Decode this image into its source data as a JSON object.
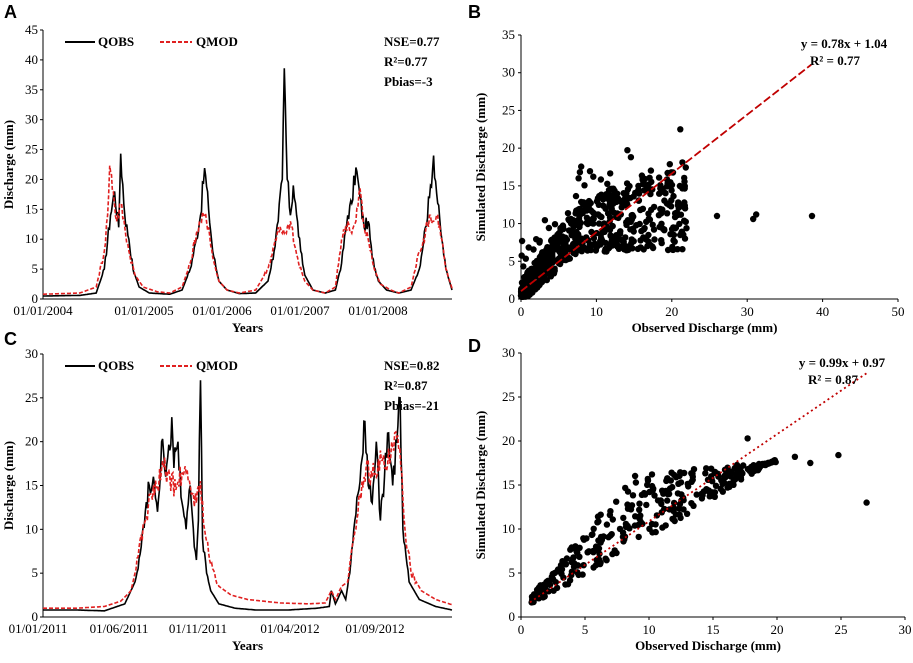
{
  "chart_data": [
    {
      "panel": "A",
      "type": "line",
      "xlabel": "Years",
      "ylabel": "Discharge (mm)",
      "ylim": [
        0,
        45
      ],
      "yticks": [
        "0",
        "5",
        "10",
        "15",
        "20",
        "25",
        "30",
        "35",
        "40",
        "45"
      ],
      "xticks": [
        "01/01/2004",
        "01/01/2005",
        "01/01/2006",
        "01/01/2007",
        "01/01/2008"
      ],
      "legend": [
        "QOBS",
        "QMOD"
      ],
      "stats": [
        "NSE=0.77",
        "R²=0.77",
        "Pbias=-3"
      ],
      "series_colors": {
        "obs": "#000000",
        "mod": "#e02020"
      },
      "series": [
        {
          "name": "QOBS",
          "anchors": [
            [
              0,
              0.5
            ],
            [
              0.09,
              0.6
            ],
            [
              0.13,
              1
            ],
            [
              0.15,
              5
            ],
            [
              0.165,
              14
            ],
            [
              0.175,
              18
            ],
            [
              0.185,
              12
            ],
            [
              0.19,
              24.3
            ],
            [
              0.2,
              14
            ],
            [
              0.21,
              10
            ],
            [
              0.22,
              5
            ],
            [
              0.235,
              2
            ],
            [
              0.26,
              1
            ],
            [
              0.31,
              0.8
            ],
            [
              0.34,
              1.5
            ],
            [
              0.36,
              5
            ],
            [
              0.375,
              10
            ],
            [
              0.385,
              14
            ],
            [
              0.395,
              21.9
            ],
            [
              0.405,
              15
            ],
            [
              0.415,
              8
            ],
            [
              0.43,
              3
            ],
            [
              0.45,
              1.5
            ],
            [
              0.48,
              0.9
            ],
            [
              0.52,
              1
            ],
            [
              0.55,
              3
            ],
            [
              0.565,
              8
            ],
            [
              0.575,
              13
            ],
            [
              0.585,
              20
            ],
            [
              0.59,
              38.6
            ],
            [
              0.597,
              20
            ],
            [
              0.605,
              14
            ],
            [
              0.612,
              19
            ],
            [
              0.62,
              14
            ],
            [
              0.63,
              8
            ],
            [
              0.64,
              4
            ],
            [
              0.66,
              1.5
            ],
            [
              0.69,
              1
            ],
            [
              0.715,
              1.5
            ],
            [
              0.73,
              6
            ],
            [
              0.745,
              14
            ],
            [
              0.755,
              16
            ],
            [
              0.765,
              22
            ],
            [
              0.775,
              17
            ],
            [
              0.785,
              12
            ],
            [
              0.795,
              13
            ],
            [
              0.805,
              7
            ],
            [
              0.82,
              3
            ],
            [
              0.84,
              1.5
            ],
            [
              0.87,
              1
            ],
            [
              0.9,
              1.5
            ],
            [
              0.92,
              5
            ],
            [
              0.935,
              12
            ],
            [
              0.945,
              17
            ],
            [
              0.955,
              24
            ],
            [
              0.965,
              16
            ],
            [
              0.975,
              10
            ],
            [
              0.985,
              5
            ],
            [
              1,
              1.5
            ]
          ]
        },
        {
          "name": "QMOD",
          "anchors": [
            [
              0,
              0.8
            ],
            [
              0.09,
              1
            ],
            [
              0.13,
              2
            ],
            [
              0.15,
              8
            ],
            [
              0.158,
              14
            ],
            [
              0.163,
              22.3
            ],
            [
              0.172,
              18
            ],
            [
              0.18,
              13
            ],
            [
              0.19,
              16
            ],
            [
              0.2,
              12
            ],
            [
              0.21,
              8
            ],
            [
              0.225,
              4
            ],
            [
              0.245,
              2
            ],
            [
              0.28,
              1.2
            ],
            [
              0.31,
              1
            ],
            [
              0.34,
              2
            ],
            [
              0.36,
              6
            ],
            [
              0.375,
              11
            ],
            [
              0.385,
              13
            ],
            [
              0.395,
              14
            ],
            [
              0.405,
              12
            ],
            [
              0.415,
              7
            ],
            [
              0.43,
              3
            ],
            [
              0.45,
              1.5
            ],
            [
              0.48,
              1
            ],
            [
              0.52,
              1.5
            ],
            [
              0.55,
              5
            ],
            [
              0.565,
              9
            ],
            [
              0.575,
              12
            ],
            [
              0.585,
              11
            ],
            [
              0.595,
              11
            ],
            [
              0.605,
              13
            ],
            [
              0.615,
              9
            ],
            [
              0.625,
              6
            ],
            [
              0.64,
              3
            ],
            [
              0.66,
              1.5
            ],
            [
              0.69,
              1
            ],
            [
              0.715,
              2
            ],
            [
              0.73,
              10
            ],
            [
              0.745,
              13
            ],
            [
              0.755,
              11
            ],
            [
              0.765,
              13
            ],
            [
              0.775,
              18.5
            ],
            [
              0.785,
              12
            ],
            [
              0.795,
              10
            ],
            [
              0.81,
              5
            ],
            [
              0.825,
              2.5
            ],
            [
              0.85,
              1.5
            ],
            [
              0.87,
              1
            ],
            [
              0.9,
              2
            ],
            [
              0.92,
              8
            ],
            [
              0.935,
              11
            ],
            [
              0.945,
              14
            ],
            [
              0.955,
              13
            ],
            [
              0.965,
              14
            ],
            [
              0.975,
              10
            ],
            [
              0.985,
              5
            ],
            [
              1,
              1.8
            ]
          ]
        }
      ]
    },
    {
      "panel": "B",
      "type": "scatter",
      "xlabel": "Observed Discharge (mm)",
      "ylabel": "Simulated Discharge (mm)",
      "xlim": [
        0,
        50
      ],
      "ylim": [
        0,
        35
      ],
      "xticks": [
        "0",
        "10",
        "20",
        "30",
        "40",
        "50"
      ],
      "yticks": [
        "0",
        "5",
        "10",
        "15",
        "20",
        "25",
        "30",
        "35"
      ],
      "equation": "y = 0.78x + 1.04",
      "r2": "R² = 0.77",
      "trend": {
        "slope": 0.78,
        "intercept": 1.04,
        "x_range": [
          0,
          38.5
        ],
        "style": "dashed",
        "color": "#c00000"
      },
      "outliers": [
        [
          26,
          11
        ],
        [
          30.8,
          10.6
        ],
        [
          31.2,
          11.2
        ],
        [
          38.6,
          11
        ]
      ],
      "cloud": {
        "x_max": 22,
        "count": 600,
        "seed": 7
      }
    },
    {
      "panel": "C",
      "type": "line",
      "xlabel": "Years",
      "ylabel": "Discharge (mm)",
      "ylim": [
        0,
        30
      ],
      "yticks": [
        "0",
        "5",
        "10",
        "15",
        "20",
        "25",
        "30"
      ],
      "xticks": [
        "01/01/2011",
        "01/06/2011",
        "01/11/2011",
        "01/04/2012",
        "01/09/2012"
      ],
      "legend": [
        "QOBS",
        "QMOD"
      ],
      "stats": [
        "NSE=0.82",
        "R²=0.87",
        "Pbias=-21"
      ],
      "series_colors": {
        "obs": "#000000",
        "mod": "#e02020"
      },
      "series": [
        {
          "name": "QOBS",
          "anchors": [
            [
              0,
              0.8
            ],
            [
              0.08,
              0.8
            ],
            [
              0.15,
              0.7
            ],
            [
              0.2,
              1.5
            ],
            [
              0.225,
              4
            ],
            [
              0.24,
              8
            ],
            [
              0.25,
              12
            ],
            [
              0.26,
              15
            ],
            [
              0.27,
              16
            ],
            [
              0.28,
              12
            ],
            [
              0.29,
              20
            ],
            [
              0.3,
              16
            ],
            [
              0.31,
              19
            ],
            [
              0.315,
              22.8
            ],
            [
              0.32,
              17
            ],
            [
              0.33,
              20
            ],
            [
              0.34,
              13
            ],
            [
              0.35,
              10
            ],
            [
              0.36,
              15
            ],
            [
              0.37,
              8
            ],
            [
              0.375,
              6.5
            ],
            [
              0.38,
              11
            ],
            [
              0.385,
              27
            ],
            [
              0.39,
              9
            ],
            [
              0.4,
              5
            ],
            [
              0.41,
              3
            ],
            [
              0.43,
              1.5
            ],
            [
              0.47,
              1
            ],
            [
              0.52,
              0.8
            ],
            [
              0.6,
              0.8
            ],
            [
              0.67,
              1
            ],
            [
              0.7,
              1.2
            ],
            [
              0.705,
              3
            ],
            [
              0.715,
              1.5
            ],
            [
              0.73,
              3
            ],
            [
              0.74,
              2
            ],
            [
              0.75,
              5
            ],
            [
              0.76,
              10
            ],
            [
              0.77,
              14
            ],
            [
              0.78,
              18
            ],
            [
              0.787,
              22.3
            ],
            [
              0.795,
              15
            ],
            [
              0.805,
              13
            ],
            [
              0.815,
              20
            ],
            [
              0.825,
              11
            ],
            [
              0.835,
              16
            ],
            [
              0.845,
              21
            ],
            [
              0.855,
              15
            ],
            [
              0.865,
              20
            ],
            [
              0.873,
              25
            ],
            [
              0.88,
              10
            ],
            [
              0.895,
              4
            ],
            [
              0.92,
              2
            ],
            [
              0.96,
              1.2
            ],
            [
              1,
              0.8
            ]
          ]
        },
        {
          "name": "QMOD",
          "anchors": [
            [
              0,
              1
            ],
            [
              0.08,
              1
            ],
            [
              0.15,
              1.2
            ],
            [
              0.19,
              1.8
            ],
            [
              0.205,
              2.5
            ],
            [
              0.215,
              3
            ],
            [
              0.225,
              5
            ],
            [
              0.235,
              8
            ],
            [
              0.25,
              11
            ],
            [
              0.265,
              14
            ],
            [
              0.28,
              15
            ],
            [
              0.295,
              17
            ],
            [
              0.31,
              16
            ],
            [
              0.325,
              14.5
            ],
            [
              0.34,
              16.5
            ],
            [
              0.36,
              15
            ],
            [
              0.375,
              13
            ],
            [
              0.385,
              15.5
            ],
            [
              0.395,
              10
            ],
            [
              0.41,
              6
            ],
            [
              0.43,
              3.5
            ],
            [
              0.46,
              2.5
            ],
            [
              0.5,
              2
            ],
            [
              0.58,
              1.6
            ],
            [
              0.65,
              1.5
            ],
            [
              0.69,
              1.6
            ],
            [
              0.705,
              3
            ],
            [
              0.715,
              2
            ],
            [
              0.73,
              3.5
            ],
            [
              0.745,
              4
            ],
            [
              0.76,
              9
            ],
            [
              0.775,
              14
            ],
            [
              0.79,
              17
            ],
            [
              0.805,
              16
            ],
            [
              0.82,
              18
            ],
            [
              0.835,
              17
            ],
            [
              0.85,
              18
            ],
            [
              0.865,
              20.5
            ],
            [
              0.875,
              17
            ],
            [
              0.885,
              10
            ],
            [
              0.9,
              5
            ],
            [
              0.925,
              3
            ],
            [
              0.96,
              2
            ],
            [
              1,
              1.4
            ]
          ]
        }
      ]
    },
    {
      "panel": "D",
      "type": "scatter",
      "xlabel": "Observed Discharge (mm)",
      "ylabel": "Simulated Discharge (mm)",
      "xlim": [
        0,
        30
      ],
      "ylim": [
        0,
        30
      ],
      "xticks": [
        "0",
        "5",
        "10",
        "15",
        "20",
        "25",
        "30"
      ],
      "yticks": [
        "0",
        "5",
        "10",
        "15",
        "20",
        "25",
        "30"
      ],
      "equation": "y = 0.99x + 0.97",
      "r2": "R² = 0.87",
      "trend": {
        "slope": 0.99,
        "intercept": 0.97,
        "x_range": [
          0.7,
          27
        ],
        "style": "dotted",
        "color": "#c00000"
      },
      "outliers": [
        [
          27,
          13
        ],
        [
          24.8,
          18.4
        ],
        [
          22.6,
          17.5
        ],
        [
          21.4,
          18.2
        ],
        [
          17.7,
          20.3
        ]
      ],
      "cloud": {
        "x_max": 20,
        "count": 330,
        "seed": 11
      }
    }
  ]
}
